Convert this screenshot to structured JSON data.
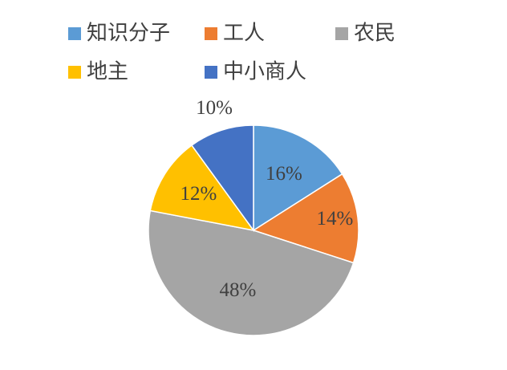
{
  "chart_data": {
    "type": "pie",
    "categories": [
      "知识分子",
      "工人",
      "农民",
      "地主",
      "中小商人"
    ],
    "values": [
      16,
      14,
      48,
      12,
      10
    ],
    "value_labels": [
      "16%",
      "14%",
      "48%",
      "12%",
      "10%"
    ],
    "colors": [
      "#5b9bd5",
      "#ed7d31",
      "#a5a5a5",
      "#ffc000",
      "#4472c4"
    ],
    "legend": "top"
  }
}
